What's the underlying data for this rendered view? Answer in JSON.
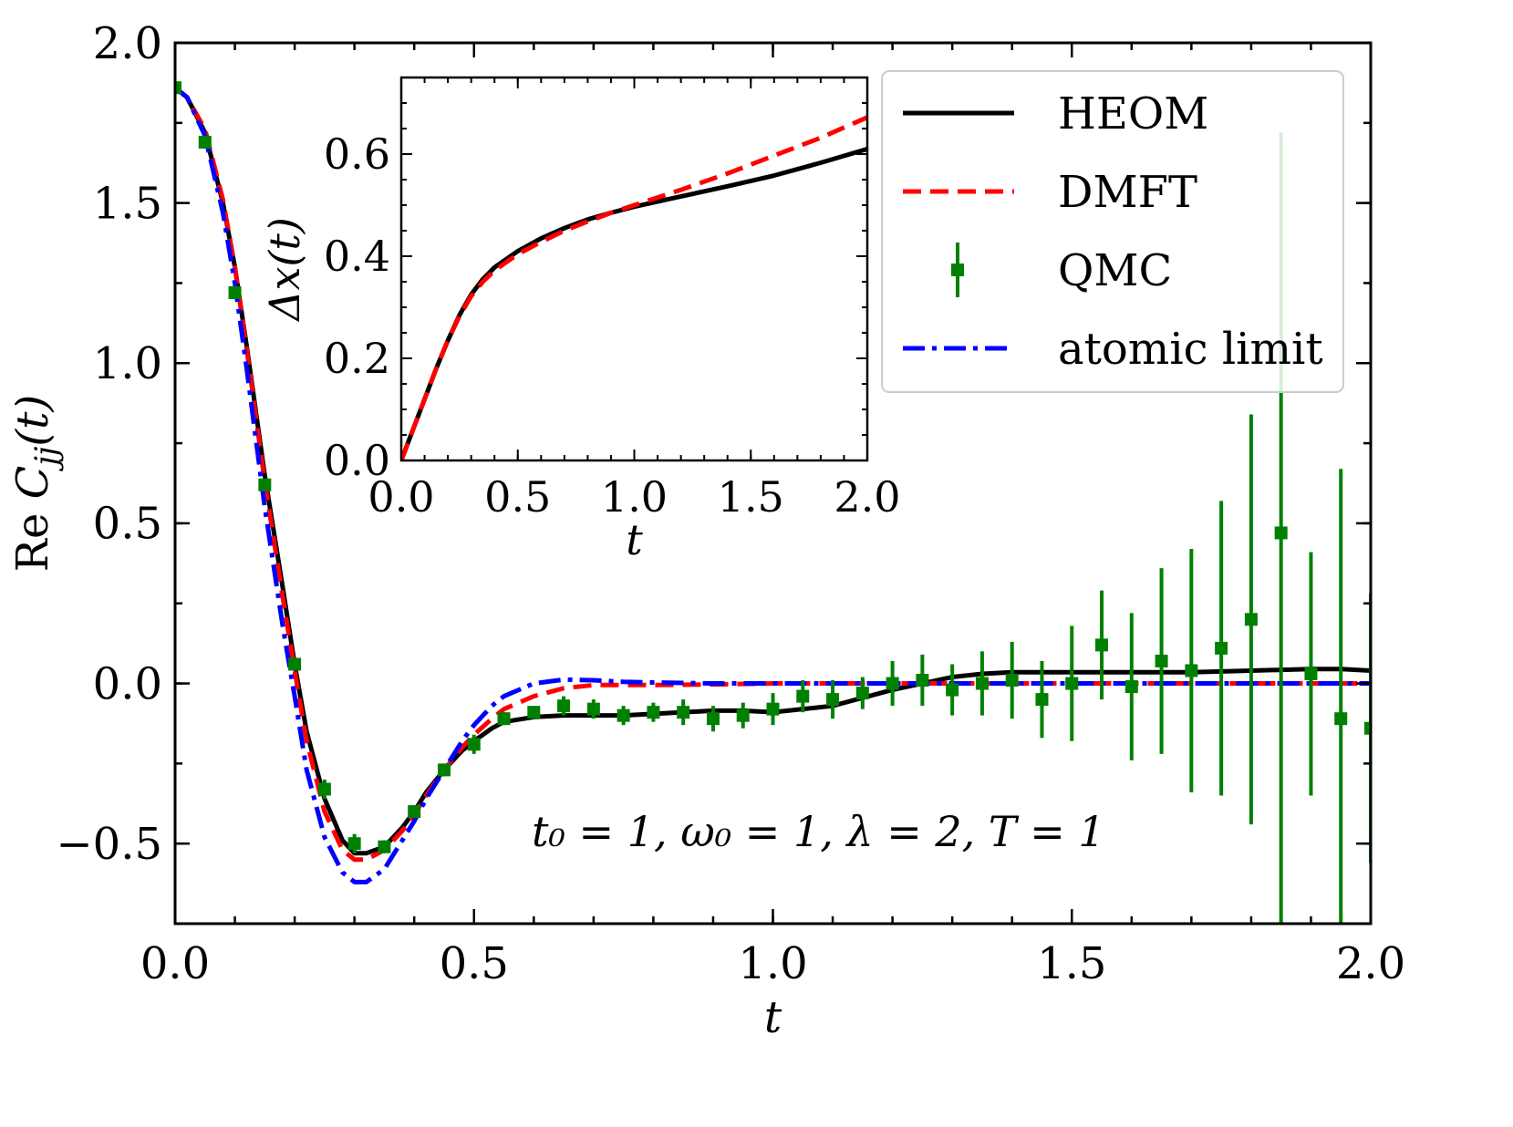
{
  "chart_data": [
    {
      "type": "line",
      "role": "main",
      "xlabel": "t",
      "ylabel": "Re C_jj(t)",
      "ylabel_parts": {
        "prefix": "Re ",
        "var": "C",
        "sub": "jj",
        "suffix": "(t)"
      },
      "xlim": [
        0.0,
        2.0
      ],
      "ylim": [
        -0.75,
        2.0
      ],
      "xticks": [
        0.0,
        0.5,
        1.0,
        1.5,
        2.0
      ],
      "xtick_labels": [
        "0.0",
        "0.5",
        "1.0",
        "1.5",
        "2.0"
      ],
      "yticks": [
        -0.5,
        0.0,
        0.5,
        1.0,
        1.5,
        2.0
      ],
      "ytick_labels": [
        "−0.5",
        "0.0",
        "0.5",
        "1.0",
        "1.5",
        "2.0"
      ],
      "annotation": "t₀ = 1, ω₀ = 1, λ = 2, T = 1",
      "legend": {
        "placement": "top-right",
        "entries": [
          {
            "label": "HEOM",
            "style": "solid",
            "color": "#000000"
          },
          {
            "label": "DMFT",
            "style": "dashed",
            "color": "#ff0000"
          },
          {
            "label": "QMC",
            "style": "errorbar",
            "color": "#008000"
          },
          {
            "label": "atomic limit",
            "style": "dashdot",
            "color": "#0000ff"
          }
        ]
      },
      "series": [
        {
          "name": "HEOM",
          "color": "#000000",
          "style": "solid",
          "x": [
            0.0,
            0.02,
            0.05,
            0.08,
            0.1,
            0.12,
            0.15,
            0.18,
            0.2,
            0.22,
            0.25,
            0.28,
            0.3,
            0.32,
            0.35,
            0.38,
            0.4,
            0.42,
            0.45,
            0.48,
            0.5,
            0.53,
            0.55,
            0.6,
            0.65,
            0.7,
            0.75,
            0.8,
            0.85,
            0.9,
            0.95,
            1.0,
            1.05,
            1.1,
            1.15,
            1.2,
            1.25,
            1.3,
            1.35,
            1.4,
            1.5,
            1.6,
            1.7,
            1.8,
            1.9,
            1.95,
            2.0
          ],
          "y": [
            1.86,
            1.83,
            1.72,
            1.5,
            1.3,
            1.05,
            0.65,
            0.3,
            0.06,
            -0.15,
            -0.36,
            -0.49,
            -0.53,
            -0.53,
            -0.51,
            -0.45,
            -0.4,
            -0.34,
            -0.27,
            -0.21,
            -0.18,
            -0.14,
            -0.12,
            -0.105,
            -0.1,
            -0.1,
            -0.1,
            -0.095,
            -0.09,
            -0.085,
            -0.085,
            -0.09,
            -0.08,
            -0.07,
            -0.045,
            -0.02,
            0.0,
            0.02,
            0.03,
            0.035,
            0.035,
            0.035,
            0.035,
            0.04,
            0.045,
            0.045,
            0.04
          ]
        },
        {
          "name": "DMFT",
          "color": "#ff0000",
          "style": "dashed",
          "x": [
            0.0,
            0.02,
            0.05,
            0.08,
            0.1,
            0.12,
            0.15,
            0.18,
            0.2,
            0.22,
            0.25,
            0.28,
            0.3,
            0.32,
            0.35,
            0.38,
            0.4,
            0.42,
            0.45,
            0.48,
            0.5,
            0.53,
            0.55,
            0.6,
            0.65,
            0.7,
            0.8,
            0.9,
            1.0,
            1.2,
            1.4,
            1.6,
            1.8,
            2.0
          ],
          "y": [
            1.86,
            1.83,
            1.73,
            1.51,
            1.3,
            1.04,
            0.63,
            0.27,
            0.04,
            -0.18,
            -0.4,
            -0.52,
            -0.55,
            -0.55,
            -0.52,
            -0.46,
            -0.41,
            -0.35,
            -0.27,
            -0.2,
            -0.16,
            -0.11,
            -0.08,
            -0.04,
            -0.015,
            -0.005,
            -0.005,
            -0.003,
            0.0,
            0.0,
            0.0,
            0.0,
            0.0,
            0.0
          ]
        },
        {
          "name": "atomic limit",
          "color": "#0000ff",
          "style": "dashdot",
          "x": [
            0.0,
            0.02,
            0.05,
            0.08,
            0.1,
            0.12,
            0.15,
            0.18,
            0.2,
            0.22,
            0.25,
            0.28,
            0.3,
            0.32,
            0.35,
            0.38,
            0.4,
            0.42,
            0.45,
            0.48,
            0.5,
            0.53,
            0.55,
            0.6,
            0.65,
            0.7,
            0.75,
            0.8,
            0.9,
            1.0,
            1.2,
            1.4,
            1.6,
            1.8,
            2.0
          ],
          "y": [
            1.86,
            1.83,
            1.71,
            1.47,
            1.25,
            0.98,
            0.55,
            0.18,
            -0.04,
            -0.27,
            -0.48,
            -0.59,
            -0.62,
            -0.62,
            -0.58,
            -0.49,
            -0.43,
            -0.36,
            -0.27,
            -0.18,
            -0.13,
            -0.07,
            -0.04,
            0.0,
            0.012,
            0.01,
            0.005,
            0.003,
            0.0,
            0.0,
            0.0,
            0.0,
            0.0,
            0.0,
            0.0
          ]
        },
        {
          "name": "QMC",
          "color": "#008000",
          "style": "errorbar",
          "x": [
            0.0,
            0.05,
            0.1,
            0.15,
            0.2,
            0.25,
            0.3,
            0.35,
            0.4,
            0.45,
            0.5,
            0.55,
            0.6,
            0.65,
            0.7,
            0.75,
            0.8,
            0.85,
            0.9,
            0.95,
            1.0,
            1.05,
            1.1,
            1.15,
            1.2,
            1.25,
            1.3,
            1.35,
            1.4,
            1.45,
            1.5,
            1.55,
            1.6,
            1.65,
            1.7,
            1.75,
            1.8,
            1.85,
            1.9,
            1.95,
            2.0
          ],
          "y": [
            1.86,
            1.69,
            1.22,
            0.62,
            0.06,
            -0.33,
            -0.5,
            -0.51,
            -0.4,
            -0.27,
            -0.19,
            -0.11,
            -0.09,
            -0.07,
            -0.08,
            -0.1,
            -0.09,
            -0.09,
            -0.11,
            -0.1,
            -0.08,
            -0.04,
            -0.05,
            -0.03,
            0.0,
            0.01,
            -0.02,
            0.0,
            0.01,
            -0.05,
            0.0,
            0.12,
            -0.01,
            0.07,
            0.04,
            0.11,
            0.2,
            0.47,
            0.03,
            -0.11,
            -0.14
          ],
          "yerr": [
            0.01,
            0.02,
            0.01,
            0.01,
            0.02,
            0.03,
            0.03,
            0.02,
            0.02,
            0.02,
            0.03,
            0.02,
            0.02,
            0.03,
            0.03,
            0.03,
            0.03,
            0.04,
            0.04,
            0.04,
            0.05,
            0.05,
            0.06,
            0.05,
            0.07,
            0.08,
            0.08,
            0.1,
            0.12,
            0.12,
            0.18,
            0.17,
            0.23,
            0.29,
            0.38,
            0.46,
            0.64,
            1.25,
            0.38,
            0.78,
            0.42
          ]
        }
      ]
    },
    {
      "type": "line",
      "role": "inset",
      "xlabel": "t",
      "ylabel": "Δx(t)",
      "xlim": [
        0.0,
        2.0
      ],
      "ylim": [
        0.0,
        0.75
      ],
      "xticks": [
        0.0,
        0.5,
        1.0,
        1.5,
        2.0
      ],
      "xtick_labels": [
        "0.0",
        "0.5",
        "1.0",
        "1.5",
        "2.0"
      ],
      "yticks": [
        0.0,
        0.2,
        0.4,
        0.6
      ],
      "ytick_labels": [
        "0.0",
        "0.2",
        "0.4",
        "0.6"
      ],
      "series": [
        {
          "name": "HEOM",
          "color": "#000000",
          "style": "solid",
          "x": [
            0.0,
            0.05,
            0.1,
            0.15,
            0.2,
            0.25,
            0.3,
            0.35,
            0.4,
            0.5,
            0.6,
            0.7,
            0.8,
            0.9,
            1.0,
            1.2,
            1.4,
            1.6,
            1.8,
            2.0
          ],
          "y": [
            0.0,
            0.06,
            0.12,
            0.18,
            0.235,
            0.285,
            0.325,
            0.355,
            0.378,
            0.41,
            0.435,
            0.455,
            0.472,
            0.485,
            0.497,
            0.517,
            0.537,
            0.558,
            0.583,
            0.61
          ]
        },
        {
          "name": "DMFT",
          "color": "#ff0000",
          "style": "dashed",
          "x": [
            0.0,
            0.05,
            0.1,
            0.15,
            0.2,
            0.25,
            0.3,
            0.35,
            0.4,
            0.5,
            0.6,
            0.7,
            0.8,
            0.9,
            1.0,
            1.2,
            1.4,
            1.6,
            1.8,
            2.0
          ],
          "y": [
            0.0,
            0.06,
            0.12,
            0.18,
            0.235,
            0.283,
            0.322,
            0.35,
            0.372,
            0.404,
            0.428,
            0.45,
            0.468,
            0.485,
            0.5,
            0.53,
            0.562,
            0.597,
            0.632,
            0.672
          ]
        }
      ]
    }
  ]
}
